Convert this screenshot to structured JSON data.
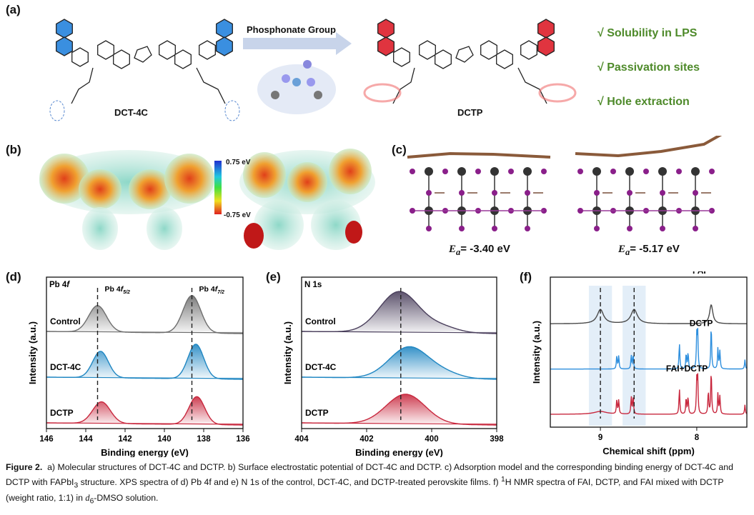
{
  "panel_labels": {
    "a": "(a)",
    "b": "(b)",
    "c": "(c)",
    "d": "(d)",
    "e": "(e)",
    "f": "(f)"
  },
  "panel_a": {
    "molecule_left": "DCT-4C",
    "molecule_right": "DCTP",
    "arrow_label": "Phosphonate Group",
    "features": [
      "√  Solubility in LPS",
      "√  Passivation sites",
      "√  Hole extraction"
    ],
    "colors": {
      "dct4c": "#3a8fe0",
      "dctp": "#e0343f",
      "feature_text": "#4e8a2a"
    }
  },
  "panel_b": {
    "colorbar_max": "0.75 eV",
    "colorbar_min": "-0.75 eV"
  },
  "panel_c": {
    "ea_left_symbol": "E",
    "ea_left_sub": "a",
    "ea_left_value": "= -3.40 eV",
    "ea_right_symbol": "E",
    "ea_right_sub": "a",
    "ea_right_value": "= -5.17 eV"
  },
  "chart_data": [
    {
      "id": "d",
      "type": "line",
      "title": "Pb 4f",
      "xlabel": "Binding energy (eV)",
      "ylabel": "Intensity (a.u.)",
      "xlim": [
        146,
        136
      ],
      "xticks": [
        "146",
        "144",
        "142",
        "140",
        "138",
        "136"
      ],
      "xtick_values": [
        146,
        144,
        142,
        140,
        138,
        136
      ],
      "annotations": [
        {
          "text": "Pb 4f",
          "sub": "5/2",
          "x": 143.4
        },
        {
          "text": "Pb 4f",
          "sub": "7/2",
          "x": 138.6
        }
      ],
      "reference_lines": [
        143.4,
        138.6
      ],
      "series": [
        {
          "name": "Control",
          "color": "#6e6e6e",
          "peaks": [
            [
              143.4,
              0.55,
              0.45
            ],
            [
              138.6,
              0.78,
              0.45
            ]
          ]
        },
        {
          "name": "DCT-4C",
          "color": "#1f86c2",
          "peaks": [
            [
              143.25,
              0.55,
              0.4
            ],
            [
              138.4,
              0.72,
              0.4
            ]
          ]
        },
        {
          "name": "DCTP",
          "color": "#c8283e",
          "peaks": [
            [
              143.2,
              0.45,
              0.45
            ],
            [
              138.35,
              0.58,
              0.4
            ]
          ]
        }
      ]
    },
    {
      "id": "e",
      "type": "line",
      "title": "N 1s",
      "xlabel": "Binding energy (eV)",
      "ylabel": "Intensity (a.u.)",
      "xlim": [
        404,
        398
      ],
      "xticks": [
        "404",
        "402",
        "400",
        "398"
      ],
      "xtick_values": [
        404,
        402,
        400,
        398
      ],
      "reference_lines": [
        400.95
      ],
      "series": [
        {
          "name": "Control",
          "color": "#4a3f5c",
          "peaks": [
            [
              401.0,
              0.85,
              0.6
            ],
            [
              399.7,
              0.12,
              0.5
            ]
          ]
        },
        {
          "name": "DCT-4C",
          "color": "#1f86c2",
          "peaks": [
            [
              400.7,
              0.65,
              0.6
            ],
            [
              399.6,
              0.1,
              0.5
            ]
          ]
        },
        {
          "name": "DCTP",
          "color": "#c8283e",
          "peaks": [
            [
              400.8,
              0.62,
              0.6
            ]
          ]
        }
      ]
    },
    {
      "id": "f",
      "type": "line",
      "title": "",
      "xlabel": "Chemical shift (ppm)",
      "ylabel": "Intensity (a.u.)",
      "xlim": [
        9.52,
        7.48
      ],
      "xticks": [
        "9",
        "8"
      ],
      "xtick_values": [
        9,
        8
      ],
      "shaded_bands": [
        [
          9.12,
          8.88
        ],
        [
          8.77,
          8.53
        ]
      ],
      "reference_lines": [
        9.0,
        8.65
      ],
      "series": [
        {
          "name": "FAI",
          "color": "#4a4a4a",
          "peaks": [
            [
              9.0,
              0.3,
              0.04
            ],
            [
              8.65,
              0.3,
              0.04
            ],
            [
              7.85,
              0.4,
              0.02
            ]
          ]
        },
        {
          "name": "DCTP",
          "color": "#2e8fde",
          "peaks": [
            [
              8.83,
              0.28,
              0.005
            ],
            [
              8.81,
              0.28,
              0.005
            ],
            [
              8.68,
              0.3,
              0.005
            ],
            [
              8.66,
              0.3,
              0.005
            ],
            [
              8.18,
              0.55,
              0.005
            ],
            [
              8.11,
              0.33,
              0.005
            ],
            [
              8.09,
              0.35,
              0.005
            ],
            [
              8.0,
              0.7,
              0.005
            ],
            [
              7.99,
              0.72,
              0.005
            ],
            [
              7.85,
              0.95,
              0.005
            ],
            [
              7.78,
              0.45,
              0.005
            ],
            [
              7.76,
              0.38,
              0.005
            ],
            [
              7.5,
              0.2,
              0.005
            ]
          ]
        },
        {
          "name": "FAI+DCTP",
          "color": "#c8283e",
          "peaks": [
            [
              9.0,
              0.06,
              0.08
            ],
            [
              8.83,
              0.3,
              0.005
            ],
            [
              8.81,
              0.3,
              0.005
            ],
            [
              8.68,
              0.38,
              0.005
            ],
            [
              8.66,
              0.38,
              0.005
            ],
            [
              8.18,
              0.55,
              0.005
            ],
            [
              8.11,
              0.35,
              0.005
            ],
            [
              8.09,
              0.37,
              0.005
            ],
            [
              8.0,
              0.7,
              0.005
            ],
            [
              7.99,
              0.72,
              0.005
            ],
            [
              7.88,
              0.5,
              0.005
            ],
            [
              7.85,
              0.95,
              0.005
            ],
            [
              7.78,
              0.45,
              0.005
            ],
            [
              7.76,
              0.38,
              0.005
            ],
            [
              7.5,
              0.2,
              0.005
            ]
          ]
        }
      ]
    }
  ],
  "caption": {
    "figure_label": "Figure 2.",
    "text": "a) Molecular structures of DCT-4C and DCTP. b) Surface electrostatic potential of DCT-4C and DCTP. c) Adsorption model and the corresponding binding energy of DCT-4C and DCTP with FAPbI",
    "sub3": "3",
    "text2": " structure. XPS spectra of d) Pb 4f and e) N 1s of the control, DCT-4C, and DCTP-treated perovskite films. f) ",
    "sup1": "1",
    "text3": "H NMR spectra of FAI, DCTP, and FAI mixed with DCTP (weight ratio, 1:1) in ",
    "d6": "d",
    "d6sub": "6",
    "text4": "-DMSO solution."
  }
}
